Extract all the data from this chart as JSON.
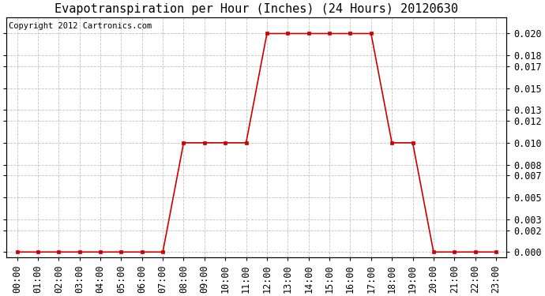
{
  "title": "Evapotranspiration per Hour (Inches) (24 Hours) 20120630",
  "copyright": "Copyright 2012 Cartronics.com",
  "hours": [
    0,
    1,
    2,
    3,
    4,
    5,
    6,
    7,
    8,
    9,
    10,
    11,
    12,
    13,
    14,
    15,
    16,
    17,
    18,
    19,
    20,
    21,
    22,
    23
  ],
  "values": [
    0.0,
    0.0,
    0.0,
    0.0,
    0.0,
    0.0,
    0.0,
    0.0,
    0.01,
    0.01,
    0.01,
    0.01,
    0.02,
    0.02,
    0.02,
    0.02,
    0.02,
    0.02,
    0.01,
    0.01,
    0.0,
    0.0,
    0.0,
    0.0
  ],
  "line_color": "#cc0000",
  "marker_color": "#cc0000",
  "bg_color": "#ffffff",
  "grid_color": "#bbbbbb",
  "yticks": [
    0.0,
    0.002,
    0.003,
    0.005,
    0.007,
    0.008,
    0.01,
    0.012,
    0.013,
    0.015,
    0.017,
    0.018,
    0.02
  ],
  "ylim": [
    -0.0005,
    0.0215
  ],
  "title_fontsize": 11,
  "copyright_fontsize": 7.5,
  "tick_fontsize": 8.5,
  "fig_width": 6.9,
  "fig_height": 3.75
}
